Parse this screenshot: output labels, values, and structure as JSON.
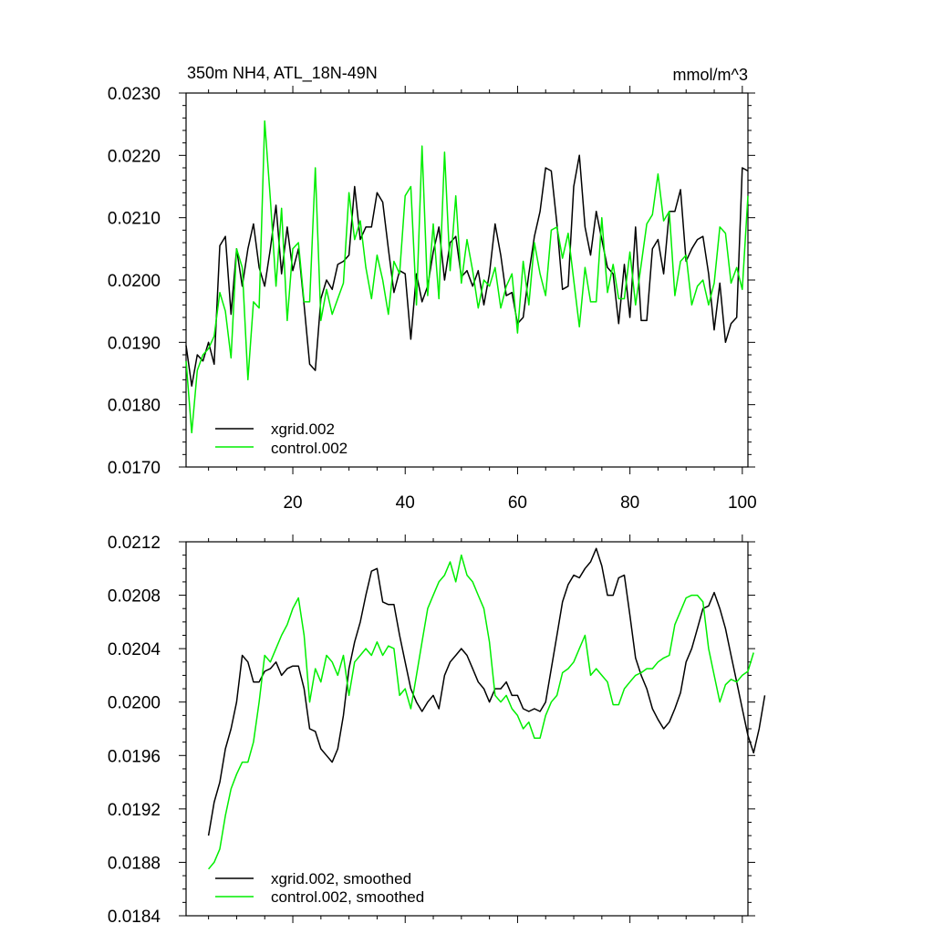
{
  "chart_data": [
    {
      "type": "line",
      "title": "350m NH4, ATL_18N-49N",
      "units": "mmol/m^3",
      "xlim": [
        1,
        101
      ],
      "ylim": [
        0.017,
        0.023
      ],
      "xticks": [
        20,
        40,
        60,
        80,
        100
      ],
      "xtick_labels": [
        "20",
        "40",
        "60",
        "80",
        "100"
      ],
      "yticks": [
        0.017,
        0.018,
        0.019,
        0.02,
        0.021,
        0.022,
        0.023
      ],
      "ytick_labels": [
        "0.0170",
        "0.0180",
        "0.0190",
        "0.0200",
        "0.0210",
        "0.0220",
        "0.0230"
      ],
      "legend_position": "bottom-left",
      "x_start": 1,
      "series": [
        {
          "name": "xgrid.002",
          "color": "#000000",
          "values": [
            0.01895,
            0.0183,
            0.0188,
            0.0187,
            0.019,
            0.01865,
            0.02055,
            0.0207,
            0.01945,
            0.0205,
            0.0199,
            0.0205,
            0.0209,
            0.0202,
            0.0199,
            0.0205,
            0.0212,
            0.0201,
            0.02085,
            0.02015,
            0.0205,
            0.0196,
            0.01865,
            0.01855,
            0.0197,
            0.02,
            0.01985,
            0.02025,
            0.0203,
            0.0204,
            0.0215,
            0.02065,
            0.02085,
            0.02085,
            0.0214,
            0.02125,
            0.0205,
            0.0198,
            0.02015,
            0.0201,
            0.01905,
            0.0201,
            0.01965,
            0.0199,
            0.02045,
            0.02085,
            0.02,
            0.0206,
            0.0207,
            0.02005,
            0.02015,
            0.0199,
            0.02015,
            0.0196,
            0.0201,
            0.0209,
            0.0204,
            0.01975,
            0.0198,
            0.0193,
            0.0194,
            0.0201,
            0.0207,
            0.0211,
            0.0218,
            0.02175,
            0.0209,
            0.01985,
            0.0199,
            0.0215,
            0.022,
            0.02085,
            0.0204,
            0.0211,
            0.02065,
            0.0202,
            0.0201,
            0.0193,
            0.02025,
            0.0194,
            0.02085,
            0.01935,
            0.01935,
            0.0205,
            0.02065,
            0.0201,
            0.0211,
            0.0211,
            0.02145,
            0.0203,
            0.0205,
            0.02065,
            0.0207,
            0.0201,
            0.0192,
            0.01995,
            0.019,
            0.0193,
            0.0194,
            0.0218,
            0.02175
          ]
        },
        {
          "name": "control.002",
          "color": "#00ee00",
          "values": [
            0.0187,
            0.01755,
            0.01855,
            0.0188,
            0.0189,
            0.0191,
            0.0198,
            0.0195,
            0.01875,
            0.0205,
            0.0202,
            0.0184,
            0.01965,
            0.01955,
            0.02255,
            0.0213,
            0.0199,
            0.02115,
            0.01935,
            0.0205,
            0.0206,
            0.01965,
            0.01965,
            0.0218,
            0.01935,
            0.01985,
            0.01945,
            0.0197,
            0.01995,
            0.0214,
            0.02065,
            0.02095,
            0.0202,
            0.0197,
            0.0204,
            0.02,
            0.01945,
            0.0203,
            0.0201,
            0.02135,
            0.0215,
            0.0196,
            0.02215,
            0.01975,
            0.0209,
            0.0197,
            0.02205,
            0.02015,
            0.02135,
            0.01995,
            0.02065,
            0.02015,
            0.01955,
            0.02,
            0.0199,
            0.0202,
            0.01955,
            0.0199,
            0.0201,
            0.01915,
            0.0203,
            0.0196,
            0.0206,
            0.0201,
            0.01975,
            0.0208,
            0.02085,
            0.02035,
            0.02075,
            0.02,
            0.01925,
            0.0202,
            0.01965,
            0.01965,
            0.021,
            0.0198,
            0.02025,
            0.0197,
            0.0197,
            0.02045,
            0.0196,
            0.02025,
            0.0209,
            0.02105,
            0.0217,
            0.02095,
            0.0211,
            0.01975,
            0.0203,
            0.0204,
            0.0196,
            0.0199,
            0.02,
            0.0196,
            0.01995,
            0.02085,
            0.02075,
            0.01995,
            0.0202,
            0.01985,
            0.02135
          ]
        }
      ]
    },
    {
      "type": "line",
      "title": "",
      "xlim": [
        1,
        101
      ],
      "ylim": [
        0.0184,
        0.0212
      ],
      "xticks": [
        20,
        40,
        60,
        80,
        100
      ],
      "xtick_labels": [],
      "yticks": [
        0.0184,
        0.0188,
        0.0192,
        0.0196,
        0.02,
        0.0204,
        0.0208,
        0.0212
      ],
      "ytick_labels": [
        "0.0184",
        "0.0188",
        "0.0192",
        "0.0196",
        "0.0200",
        "0.0204",
        "0.0208",
        "0.0212"
      ],
      "legend_position": "bottom-left",
      "x_start": 5,
      "series": [
        {
          "name": "xgrid.002, smoothed",
          "color": "#000000",
          "values": [
            0.019,
            0.01925,
            0.0194,
            0.01965,
            0.0198,
            0.02,
            0.02035,
            0.0203,
            0.02015,
            0.02015,
            0.02023,
            0.02025,
            0.0203,
            0.0202,
            0.02025,
            0.02027,
            0.02027,
            0.0201,
            0.0198,
            0.01978,
            0.01965,
            0.0196,
            0.01955,
            0.01965,
            0.0199,
            0.02025,
            0.02045,
            0.0206,
            0.0208,
            0.02098,
            0.021,
            0.02075,
            0.02073,
            0.02073,
            0.0205,
            0.0203,
            0.0201,
            0.02,
            0.01993,
            0.02,
            0.02005,
            0.01995,
            0.0202,
            0.0203,
            0.02035,
            0.0204,
            0.02035,
            0.02025,
            0.02015,
            0.0201,
            0.02,
            0.0201,
            0.0201,
            0.02015,
            0.02005,
            0.02005,
            0.01995,
            0.01993,
            0.01995,
            0.01993,
            0.02,
            0.02025,
            0.0205,
            0.02075,
            0.02088,
            0.02095,
            0.02093,
            0.021,
            0.02105,
            0.02115,
            0.02102,
            0.0208,
            0.0208,
            0.02093,
            0.02095,
            0.02065,
            0.02033,
            0.0202,
            0.0201,
            0.01995,
            0.01987,
            0.0198,
            0.01985,
            0.01995,
            0.02007,
            0.0203,
            0.0204,
            0.02055,
            0.0207,
            0.02072,
            0.02082,
            0.0207,
            0.02055,
            0.02035,
            0.02015,
            0.01995,
            0.01975,
            0.01962,
            0.0198,
            0.02005
          ]
        },
        {
          "name": "control.002, smoothed",
          "color": "#00ee00",
          "values": [
            0.01875,
            0.0188,
            0.0189,
            0.01915,
            0.01935,
            0.01946,
            0.01955,
            0.01955,
            0.0197,
            0.02,
            0.02035,
            0.0203,
            0.0204,
            0.0205,
            0.02058,
            0.0207,
            0.02078,
            0.0205,
            0.02,
            0.02025,
            0.02015,
            0.02035,
            0.0203,
            0.0202,
            0.02035,
            0.02005,
            0.0203,
            0.02035,
            0.0204,
            0.02035,
            0.02045,
            0.02035,
            0.02042,
            0.0204,
            0.02005,
            0.0201,
            0.01995,
            0.0202,
            0.02045,
            0.0207,
            0.0208,
            0.0209,
            0.02095,
            0.02105,
            0.0209,
            0.0211,
            0.02095,
            0.0209,
            0.0208,
            0.0207,
            0.02045,
            0.02005,
            0.02,
            0.02005,
            0.01995,
            0.0199,
            0.0198,
            0.01985,
            0.01973,
            0.01973,
            0.0199,
            0.02,
            0.02005,
            0.02022,
            0.02025,
            0.0203,
            0.0204,
            0.0205,
            0.0202,
            0.02025,
            0.0202,
            0.02015,
            0.01998,
            0.01998,
            0.0201,
            0.02015,
            0.0202,
            0.02022,
            0.02025,
            0.02025,
            0.0203,
            0.02033,
            0.02035,
            0.02058,
            0.02068,
            0.02078,
            0.0208,
            0.0208,
            0.02075,
            0.0204,
            0.0202,
            0.02,
            0.02013,
            0.02017,
            0.02015,
            0.0202,
            0.02023,
            0.02037
          ]
        }
      ]
    }
  ]
}
